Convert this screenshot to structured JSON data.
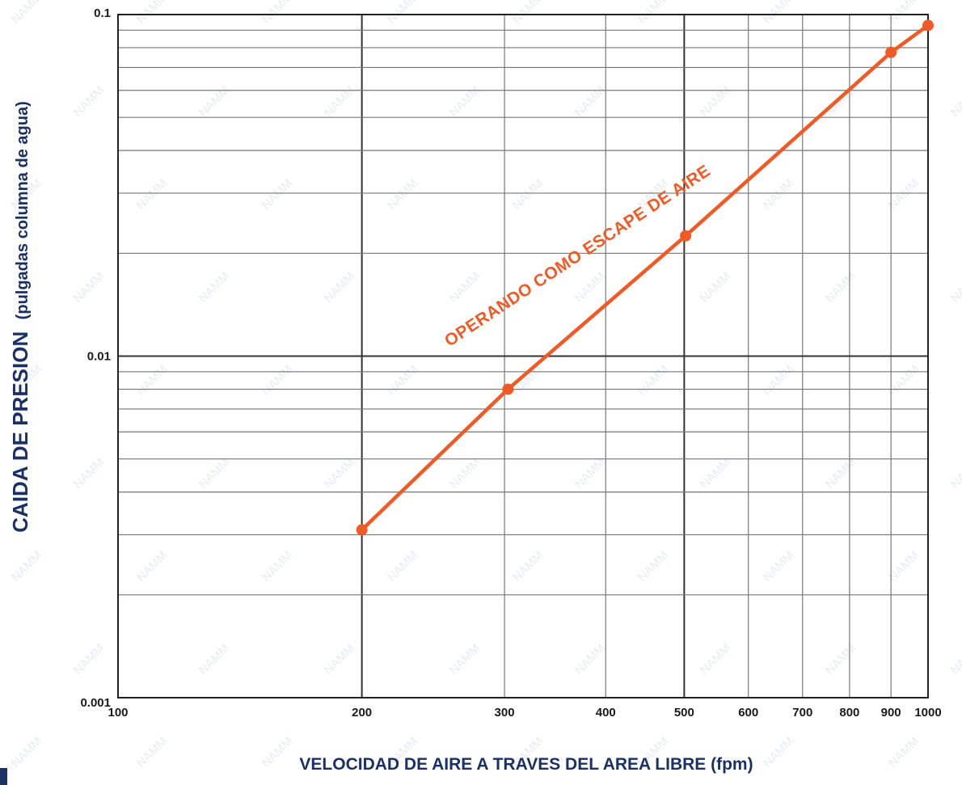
{
  "watermark": "NAMM",
  "chart_data": {
    "type": "line",
    "x_scale": "log",
    "y_scale": "log",
    "xlim": [
      100,
      1000
    ],
    "ylim": [
      0.001,
      0.1
    ],
    "x_ticks": [
      100,
      200,
      300,
      400,
      500,
      600,
      700,
      800,
      900,
      1000
    ],
    "x_tick_labels": [
      "100",
      "200",
      "300",
      "400",
      "500",
      "600",
      "700",
      "800",
      "900",
      "1000"
    ],
    "y_ticks": [
      0.001,
      0.01,
      0.1
    ],
    "y_tick_labels": [
      "0.001",
      "0.01",
      "0.1"
    ],
    "xlabel": "VELOCIDAD DE AIRE A TRAVES DEL AREA LIBRE (fpm)",
    "ylabel": "CAIDA DE PRESION",
    "ylabel_sub": "(pulgadas columna de agua)",
    "grid": true,
    "series": [
      {
        "name": "OPERANDO COMO ESCAPE DE AIRE",
        "color": "#f15a24",
        "x": [
          200,
          303,
          502,
          900,
          1000
        ],
        "y": [
          0.0031,
          0.008,
          0.0225,
          0.0775,
          0.093
        ]
      }
    ]
  }
}
